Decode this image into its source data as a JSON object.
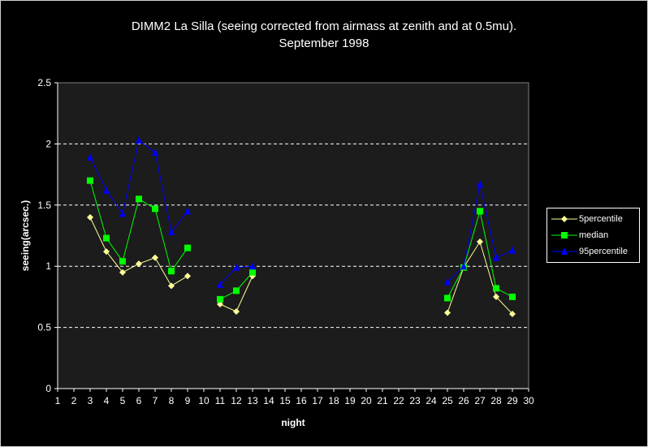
{
  "chart_data": {
    "type": "line",
    "title": "DIMM2 La Silla (seeing corrected from airmass at zenith and at 0.5mu).",
    "subtitle": "September 1998",
    "xlabel": "night",
    "ylabel": "seeing(arcsec.)",
    "ylim": [
      0,
      2.5
    ],
    "yticks": [
      "0",
      "0.5",
      "1",
      "1.5",
      "2",
      "2.5"
    ],
    "xlim": [
      1,
      30
    ],
    "xticks": [
      "1",
      "2",
      "3",
      "4",
      "5",
      "6",
      "7",
      "8",
      "9",
      "10",
      "11",
      "12",
      "13",
      "14",
      "15",
      "16",
      "17",
      "18",
      "19",
      "20",
      "21",
      "22",
      "23",
      "24",
      "25",
      "26",
      "27",
      "28",
      "29",
      "30"
    ],
    "grid": "horizontal dashed",
    "legend_position": "right",
    "series": [
      {
        "name": "5percentile",
        "color": "#ffff99",
        "marker": "diamond",
        "x": [
          3,
          4,
          5,
          6,
          7,
          8,
          9,
          null,
          11,
          12,
          13,
          null,
          25,
          26,
          27,
          28,
          29
        ],
        "values": [
          1.4,
          1.12,
          0.95,
          1.02,
          1.07,
          0.84,
          0.92,
          null,
          0.69,
          0.63,
          0.92,
          null,
          0.62,
          0.99,
          1.2,
          0.75,
          0.61
        ]
      },
      {
        "name": "median",
        "color": "#00ff00",
        "marker": "square",
        "x": [
          3,
          4,
          5,
          6,
          7,
          8,
          9,
          null,
          11,
          12,
          13,
          null,
          25,
          26,
          27,
          28,
          29
        ],
        "values": [
          1.7,
          1.23,
          1.04,
          1.55,
          1.47,
          0.96,
          1.15,
          null,
          0.73,
          0.8,
          0.95,
          null,
          0.74,
          0.99,
          1.45,
          0.82,
          0.75
        ]
      },
      {
        "name": "95percentile",
        "color": "#0000ff",
        "marker": "triangle",
        "x": [
          3,
          4,
          5,
          6,
          7,
          8,
          9,
          null,
          11,
          12,
          13,
          null,
          25,
          26,
          27,
          28,
          29
        ],
        "values": [
          1.89,
          1.62,
          1.43,
          2.03,
          1.93,
          1.28,
          1.45,
          null,
          0.85,
          0.99,
          1.0,
          null,
          0.87,
          1.0,
          1.67,
          1.07,
          1.13
        ]
      }
    ]
  }
}
